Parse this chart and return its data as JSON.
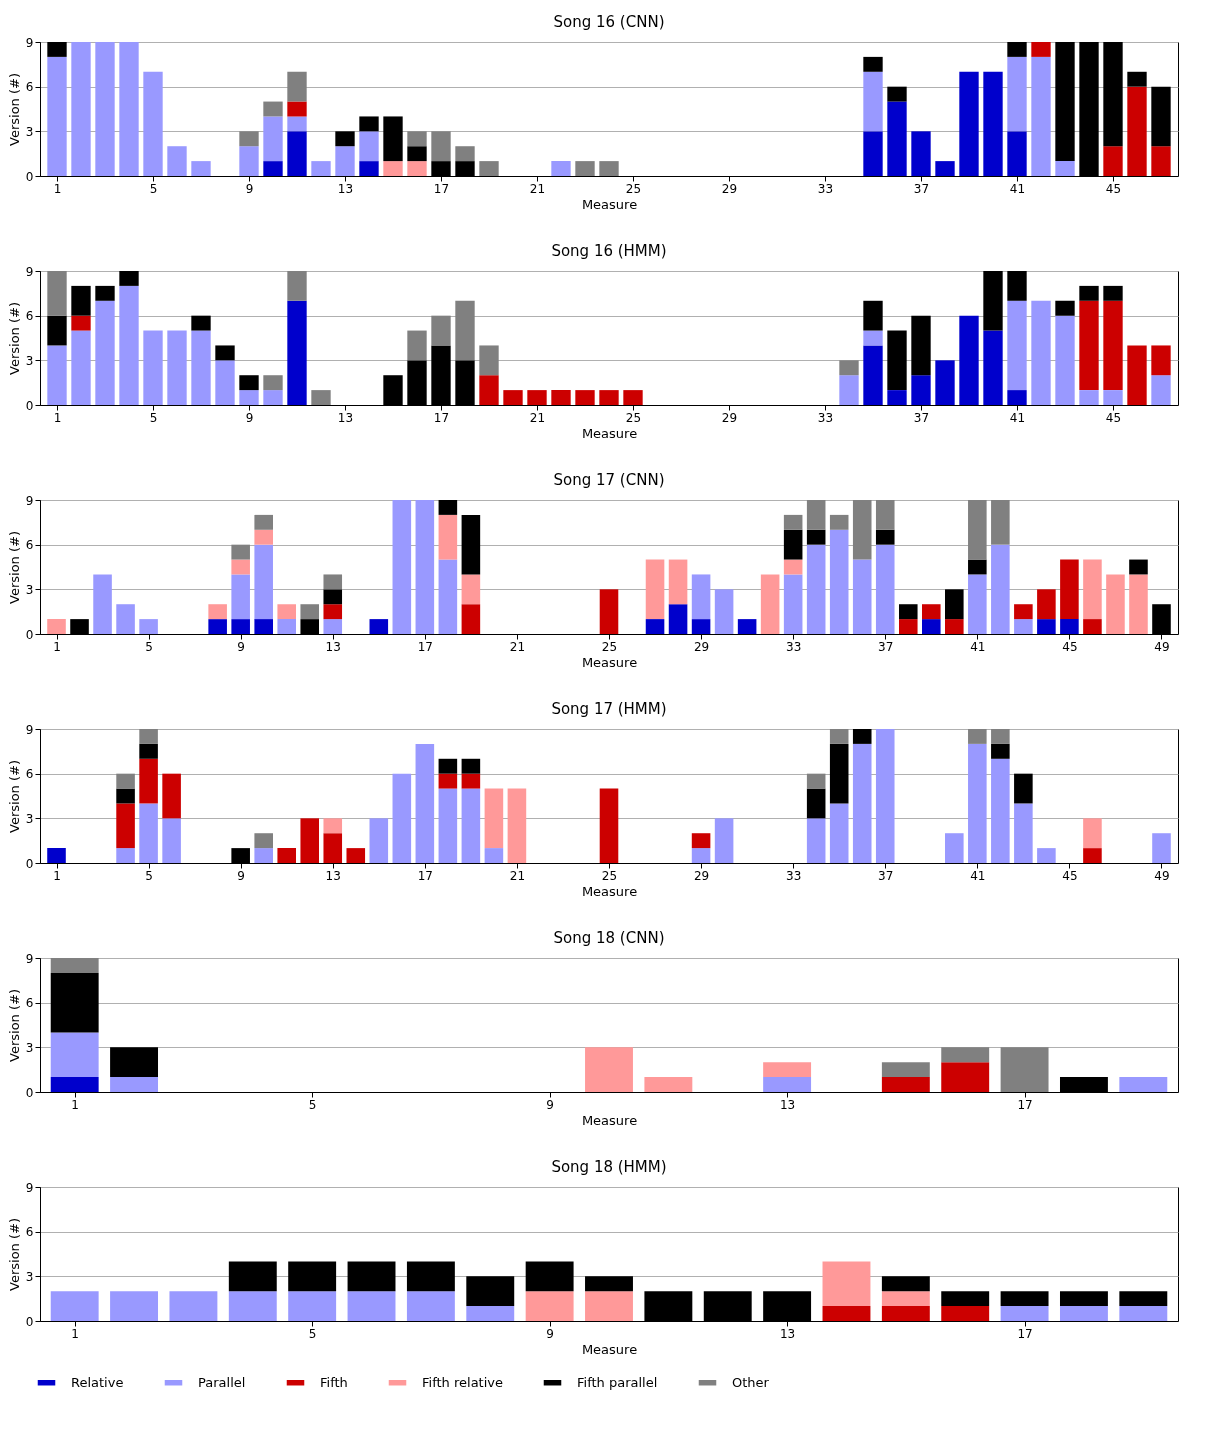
{
  "chart_data": [
    {
      "type": "bar",
      "title": "Song 16 (CNN)",
      "xlabel": "Measure",
      "ylabel": "Version (#)",
      "stacked": true,
      "grid": "y",
      "xlim": [
        0.5,
        47.5
      ],
      "xticks": [
        1,
        5,
        9,
        13,
        17,
        21,
        25,
        29,
        33,
        37,
        41,
        45
      ],
      "ylim": [
        0,
        9
      ],
      "yticks": [
        0,
        3,
        6,
        9
      ],
      "x": [
        1,
        2,
        3,
        4,
        5,
        6,
        7,
        8,
        9,
        10,
        11,
        12,
        13,
        14,
        15,
        16,
        17,
        18,
        19,
        20,
        21,
        22,
        23,
        24,
        25,
        26,
        27,
        28,
        29,
        30,
        31,
        32,
        33,
        34,
        35,
        36,
        37,
        38,
        39,
        40,
        41,
        42,
        43,
        44,
        45,
        46,
        47
      ],
      "series": [
        {
          "color": "#0000cc",
          "values": [
            0,
            0,
            0,
            0,
            0,
            0,
            0,
            0,
            0,
            1,
            3,
            0,
            0,
            1,
            0,
            0,
            0,
            0,
            0,
            0,
            0,
            0,
            0,
            0,
            0,
            0,
            0,
            0,
            0,
            0,
            0,
            0,
            0,
            0,
            3,
            5,
            3,
            1,
            7,
            7,
            3,
            0,
            0,
            0,
            0,
            0,
            0
          ]
        },
        {
          "color": "#9999ff",
          "values": [
            8,
            9,
            9,
            9,
            7,
            2,
            1,
            0,
            2,
            3,
            1,
            1,
            2,
            2,
            0,
            0,
            0,
            0,
            0,
            0,
            0,
            1,
            0,
            0,
            0,
            0,
            0,
            0,
            0,
            0,
            0,
            0,
            0,
            0,
            4,
            0,
            0,
            0,
            0,
            0,
            5,
            8,
            1,
            0,
            0,
            0,
            0
          ]
        },
        {
          "color": "#cc0000",
          "values": [
            0,
            0,
            0,
            0,
            0,
            0,
            0,
            0,
            0,
            0,
            1,
            0,
            0,
            0,
            0,
            0,
            0,
            0,
            0,
            0,
            0,
            0,
            0,
            0,
            0,
            0,
            0,
            0,
            0,
            0,
            0,
            0,
            0,
            0,
            0,
            0,
            0,
            0,
            0,
            0,
            0,
            1,
            0,
            0,
            2,
            6,
            2
          ]
        },
        {
          "color": "#ff9999",
          "values": [
            0,
            0,
            0,
            0,
            0,
            0,
            0,
            0,
            0,
            0,
            0,
            0,
            0,
            0,
            1,
            1,
            0,
            0,
            0,
            0,
            0,
            0,
            0,
            0,
            0,
            0,
            0,
            0,
            0,
            0,
            0,
            0,
            0,
            0,
            0,
            0,
            0,
            0,
            0,
            0,
            0,
            0,
            0,
            0,
            0,
            0,
            0
          ]
        },
        {
          "color": "#000000",
          "values": [
            1,
            0,
            0,
            0,
            0,
            0,
            0,
            0,
            0,
            0,
            0,
            0,
            1,
            1,
            3,
            1,
            1,
            1,
            0,
            0,
            0,
            0,
            0,
            0,
            0,
            0,
            0,
            0,
            0,
            0,
            0,
            0,
            0,
            0,
            1,
            1,
            0,
            0,
            0,
            0,
            1,
            0,
            8,
            9,
            7,
            1,
            4
          ]
        },
        {
          "color": "#808080",
          "values": [
            0,
            0,
            0,
            0,
            0,
            0,
            0,
            0,
            1,
            1,
            2,
            0,
            0,
            0,
            0,
            1,
            2,
            1,
            1,
            0,
            0,
            0,
            1,
            1,
            0,
            0,
            0,
            0,
            0,
            0,
            0,
            0,
            0,
            0,
            0,
            0,
            0,
            0,
            0,
            0,
            0,
            0,
            0,
            0,
            0,
            0,
            0
          ]
        }
      ]
    },
    {
      "type": "bar",
      "title": "Song 16 (HMM)",
      "xlabel": "Measure",
      "ylabel": "Version (#)",
      "stacked": true,
      "grid": "y",
      "xlim": [
        0.5,
        47.5
      ],
      "xticks": [
        1,
        5,
        9,
        13,
        17,
        21,
        25,
        29,
        33,
        37,
        41,
        45
      ],
      "ylim": [
        0,
        9
      ],
      "yticks": [
        0,
        3,
        6,
        9
      ],
      "x": [
        1,
        2,
        3,
        4,
        5,
        6,
        7,
        8,
        9,
        10,
        11,
        12,
        13,
        14,
        15,
        16,
        17,
        18,
        19,
        20,
        21,
        22,
        23,
        24,
        25,
        26,
        27,
        28,
        29,
        30,
        31,
        32,
        33,
        34,
        35,
        36,
        37,
        38,
        39,
        40,
        41,
        42,
        43,
        44,
        45,
        46,
        47
      ],
      "series": [
        {
          "color": "#0000cc",
          "values": [
            0,
            0,
            0,
            0,
            0,
            0,
            0,
            0,
            0,
            0,
            7,
            0,
            0,
            0,
            0,
            0,
            0,
            0,
            0,
            0,
            0,
            0,
            0,
            0,
            0,
            0,
            0,
            0,
            0,
            0,
            0,
            0,
            0,
            0,
            4,
            1,
            2,
            3,
            6,
            5,
            1,
            0,
            0,
            0,
            0,
            0,
            0
          ]
        },
        {
          "color": "#9999ff",
          "values": [
            4,
            5,
            7,
            8,
            5,
            5,
            5,
            3,
            1,
            1,
            0,
            0,
            0,
            0,
            0,
            0,
            0,
            0,
            0,
            0,
            0,
            0,
            0,
            0,
            0,
            0,
            0,
            0,
            0,
            0,
            0,
            0,
            0,
            2,
            1,
            0,
            0,
            0,
            0,
            0,
            6,
            7,
            6,
            1,
            1,
            0,
            2
          ]
        },
        {
          "color": "#cc0000",
          "values": [
            0,
            1,
            0,
            0,
            0,
            0,
            0,
            0,
            0,
            0,
            0,
            0,
            0,
            0,
            0,
            0,
            0,
            0,
            2,
            1,
            1,
            1,
            1,
            1,
            1,
            0,
            0,
            0,
            0,
            0,
            0,
            0,
            0,
            0,
            0,
            0,
            0,
            0,
            0,
            0,
            0,
            0,
            0,
            6,
            6,
            4,
            2
          ]
        },
        {
          "color": "#ff9999",
          "values": [
            0,
            0,
            0,
            0,
            0,
            0,
            0,
            0,
            0,
            0,
            0,
            0,
            0,
            0,
            0,
            0,
            0,
            0,
            0,
            0,
            0,
            0,
            0,
            0,
            0,
            0,
            0,
            0,
            0,
            0,
            0,
            0,
            0,
            0,
            0,
            0,
            0,
            0,
            0,
            0,
            0,
            0,
            0,
            0,
            0,
            0,
            0
          ]
        },
        {
          "color": "#000000",
          "values": [
            2,
            2,
            1,
            1,
            0,
            0,
            1,
            1,
            1,
            0,
            0,
            0,
            0,
            0,
            2,
            3,
            4,
            3,
            0,
            0,
            0,
            0,
            0,
            0,
            0,
            0,
            0,
            0,
            0,
            0,
            0,
            0,
            0,
            0,
            2,
            4,
            4,
            0,
            0,
            4,
            2,
            0,
            1,
            1,
            1,
            0,
            0
          ]
        },
        {
          "color": "#808080",
          "values": [
            3,
            0,
            0,
            0,
            0,
            0,
            0,
            0,
            0,
            1,
            2,
            1,
            0,
            0,
            0,
            2,
            2,
            4,
            2,
            0,
            0,
            0,
            0,
            0,
            0,
            0,
            0,
            0,
            0,
            0,
            0,
            0,
            0,
            1,
            0,
            0,
            0,
            0,
            0,
            0,
            0,
            0,
            0,
            0,
            0,
            0,
            0
          ]
        }
      ]
    },
    {
      "type": "bar",
      "title": "Song 17 (CNN)",
      "xlabel": "Measure",
      "ylabel": "Version (#)",
      "stacked": true,
      "grid": "y",
      "xlim": [
        0.5,
        49.5
      ],
      "xticks": [
        1,
        5,
        9,
        13,
        17,
        21,
        25,
        29,
        33,
        37,
        41,
        45,
        49
      ],
      "ylim": [
        0,
        9
      ],
      "yticks": [
        0,
        3,
        6,
        9
      ],
      "x": [
        1,
        2,
        3,
        4,
        5,
        6,
        7,
        8,
        9,
        10,
        11,
        12,
        13,
        14,
        15,
        16,
        17,
        18,
        19,
        20,
        21,
        22,
        23,
        24,
        25,
        26,
        27,
        28,
        29,
        30,
        31,
        32,
        33,
        34,
        35,
        36,
        37,
        38,
        39,
        40,
        41,
        42,
        43,
        44,
        45,
        46,
        47,
        48,
        49
      ],
      "series": [
        {
          "color": "#0000cc",
          "values": [
            0,
            0,
            0,
            0,
            0,
            0,
            0,
            1,
            1,
            1,
            0,
            0,
            0,
            0,
            1,
            0,
            0,
            0,
            0,
            0,
            0,
            0,
            0,
            0,
            0,
            0,
            1,
            2,
            1,
            0,
            1,
            0,
            0,
            0,
            0,
            0,
            0,
            0,
            1,
            0,
            0,
            0,
            0,
            1,
            1,
            0,
            0,
            0,
            0
          ]
        },
        {
          "color": "#9999ff",
          "values": [
            0,
            0,
            4,
            2,
            1,
            0,
            0,
            0,
            3,
            5,
            1,
            0,
            1,
            0,
            0,
            9,
            9,
            5,
            0,
            0,
            0,
            0,
            0,
            0,
            0,
            0,
            0,
            0,
            3,
            3,
            0,
            0,
            4,
            6,
            7,
            5,
            6,
            0,
            0,
            0,
            4,
            6,
            1,
            0,
            0,
            0,
            0,
            0,
            0
          ]
        },
        {
          "color": "#cc0000",
          "values": [
            0,
            0,
            0,
            0,
            0,
            0,
            0,
            0,
            0,
            0,
            0,
            0,
            1,
            0,
            0,
            0,
            0,
            0,
            2,
            0,
            0,
            0,
            0,
            0,
            3,
            0,
            0,
            0,
            0,
            0,
            0,
            0,
            0,
            0,
            0,
            0,
            0,
            1,
            1,
            1,
            0,
            0,
            1,
            2,
            4,
            1,
            0,
            0,
            0
          ]
        },
        {
          "color": "#ff9999",
          "values": [
            1,
            0,
            0,
            0,
            0,
            0,
            0,
            1,
            1,
            1,
            1,
            0,
            0,
            0,
            0,
            0,
            0,
            3,
            2,
            0,
            0,
            0,
            0,
            0,
            0,
            0,
            4,
            3,
            0,
            0,
            0,
            4,
            1,
            0,
            0,
            0,
            0,
            0,
            0,
            0,
            0,
            0,
            0,
            0,
            0,
            4,
            4,
            4,
            0
          ]
        },
        {
          "color": "#000000",
          "values": [
            0,
            1,
            0,
            0,
            0,
            0,
            0,
            0,
            0,
            0,
            0,
            1,
            1,
            0,
            0,
            0,
            0,
            1,
            4,
            0,
            0,
            0,
            0,
            0,
            0,
            0,
            0,
            0,
            0,
            0,
            0,
            0,
            2,
            1,
            0,
            0,
            1,
            1,
            0,
            2,
            1,
            0,
            0,
            0,
            0,
            0,
            0,
            1,
            2
          ]
        },
        {
          "color": "#808080",
          "values": [
            0,
            0,
            0,
            0,
            0,
            0,
            0,
            0,
            1,
            1,
            0,
            1,
            1,
            0,
            0,
            0,
            0,
            0,
            0,
            0,
            0,
            0,
            0,
            0,
            0,
            0,
            0,
            0,
            0,
            0,
            0,
            0,
            1,
            2,
            1,
            4,
            2,
            0,
            0,
            0,
            4,
            3,
            0,
            0,
            0,
            0,
            0,
            0,
            0
          ]
        }
      ]
    },
    {
      "type": "bar",
      "title": "Song 17 (HMM)",
      "xlabel": "Measure",
      "ylabel": "Version (#)",
      "stacked": true,
      "grid": "y",
      "xlim": [
        0.5,
        49.5
      ],
      "xticks": [
        1,
        5,
        9,
        13,
        17,
        21,
        25,
        29,
        33,
        37,
        41,
        45,
        49
      ],
      "ylim": [
        0,
        9
      ],
      "yticks": [
        0,
        3,
        6,
        9
      ],
      "x": [
        1,
        2,
        3,
        4,
        5,
        6,
        7,
        8,
        9,
        10,
        11,
        12,
        13,
        14,
        15,
        16,
        17,
        18,
        19,
        20,
        21,
        22,
        23,
        24,
        25,
        26,
        27,
        28,
        29,
        30,
        31,
        32,
        33,
        34,
        35,
        36,
        37,
        38,
        39,
        40,
        41,
        42,
        43,
        44,
        45,
        46,
        47,
        48,
        49
      ],
      "series": [
        {
          "color": "#0000cc",
          "values": [
            1,
            0,
            0,
            0,
            0,
            0,
            0,
            0,
            0,
            0,
            0,
            0,
            0,
            0,
            0,
            0,
            0,
            0,
            0,
            0,
            0,
            0,
            0,
            0,
            0,
            0,
            0,
            0,
            0,
            0,
            0,
            0,
            0,
            0,
            0,
            0,
            0,
            0,
            0,
            0,
            0,
            0,
            0,
            0,
            0,
            0,
            0,
            0,
            0
          ]
        },
        {
          "color": "#9999ff",
          "values": [
            0,
            0,
            0,
            1,
            4,
            3,
            0,
            0,
            0,
            1,
            0,
            0,
            0,
            0,
            3,
            6,
            8,
            5,
            5,
            1,
            0,
            0,
            0,
            0,
            0,
            0,
            0,
            0,
            1,
            3,
            0,
            0,
            0,
            3,
            4,
            8,
            9,
            0,
            0,
            2,
            8,
            7,
            4,
            1,
            0,
            0,
            0,
            0,
            2
          ]
        },
        {
          "color": "#cc0000",
          "values": [
            0,
            0,
            0,
            3,
            3,
            3,
            0,
            0,
            0,
            0,
            1,
            3,
            2,
            1,
            0,
            0,
            0,
            1,
            1,
            0,
            0,
            0,
            0,
            0,
            5,
            0,
            0,
            0,
            1,
            0,
            0,
            0,
            0,
            0,
            0,
            0,
            0,
            0,
            0,
            0,
            0,
            0,
            0,
            0,
            0,
            1,
            0,
            0,
            0
          ]
        },
        {
          "color": "#ff9999",
          "values": [
            0,
            0,
            0,
            0,
            0,
            0,
            0,
            0,
            0,
            0,
            0,
            0,
            1,
            0,
            0,
            0,
            0,
            0,
            0,
            4,
            5,
            0,
            0,
            0,
            0,
            0,
            0,
            0,
            0,
            0,
            0,
            0,
            0,
            0,
            0,
            0,
            0,
            0,
            0,
            0,
            0,
            0,
            0,
            0,
            0,
            2,
            0,
            0,
            0
          ]
        },
        {
          "color": "#000000",
          "values": [
            0,
            0,
            0,
            1,
            1,
            0,
            0,
            0,
            1,
            0,
            0,
            0,
            0,
            0,
            0,
            0,
            0,
            1,
            1,
            0,
            0,
            0,
            0,
            0,
            0,
            0,
            0,
            0,
            0,
            0,
            0,
            0,
            0,
            2,
            4,
            1,
            0,
            0,
            0,
            0,
            0,
            1,
            2,
            0,
            0,
            0,
            0,
            0,
            0
          ]
        },
        {
          "color": "#808080",
          "values": [
            0,
            0,
            0,
            1,
            1,
            0,
            0,
            0,
            0,
            1,
            0,
            0,
            0,
            0,
            0,
            0,
            0,
            0,
            0,
            0,
            0,
            0,
            0,
            0,
            0,
            0,
            0,
            0,
            0,
            0,
            0,
            0,
            0,
            1,
            1,
            0,
            0,
            0,
            0,
            0,
            1,
            1,
            0,
            0,
            0,
            0,
            0,
            0,
            0
          ]
        }
      ]
    },
    {
      "type": "bar",
      "title": "Song 18 (CNN)",
      "xlabel": "Measure",
      "ylabel": "Version (#)",
      "stacked": true,
      "grid": "y",
      "xlim": [
        0.5,
        19.5
      ],
      "xticks": [
        1,
        5,
        9,
        13,
        17
      ],
      "ylim": [
        0,
        9
      ],
      "yticks": [
        0,
        3,
        6,
        9
      ],
      "x": [
        1,
        2,
        3,
        4,
        5,
        6,
        7,
        8,
        9,
        10,
        11,
        12,
        13,
        14,
        15,
        16,
        17,
        18,
        19
      ],
      "series": [
        {
          "color": "#0000cc",
          "values": [
            1,
            0,
            0,
            0,
            0,
            0,
            0,
            0,
            0,
            0,
            0,
            0,
            0,
            0,
            0,
            0,
            0,
            0,
            0
          ]
        },
        {
          "color": "#9999ff",
          "values": [
            3,
            1,
            0,
            0,
            0,
            0,
            0,
            0,
            0,
            0,
            0,
            0,
            1,
            0,
            0,
            0,
            0,
            0,
            1
          ]
        },
        {
          "color": "#cc0000",
          "values": [
            0,
            0,
            0,
            0,
            0,
            0,
            0,
            0,
            0,
            0,
            0,
            0,
            0,
            0,
            1,
            2,
            0,
            0,
            0
          ]
        },
        {
          "color": "#ff9999",
          "values": [
            0,
            0,
            0,
            0,
            0,
            0,
            0,
            0,
            0,
            3,
            1,
            0,
            1,
            0,
            0,
            0,
            0,
            0,
            0
          ]
        },
        {
          "color": "#000000",
          "values": [
            4,
            2,
            0,
            0,
            0,
            0,
            0,
            0,
            0,
            0,
            0,
            0,
            0,
            0,
            0,
            0,
            0,
            1,
            0
          ]
        },
        {
          "color": "#808080",
          "values": [
            1,
            0,
            0,
            0,
            0,
            0,
            0,
            0,
            0,
            0,
            0,
            0,
            0,
            0,
            1,
            1,
            3,
            0,
            0
          ]
        }
      ]
    },
    {
      "type": "bar",
      "title": "Song 18 (HMM)",
      "xlabel": "Measure",
      "ylabel": "Version (#)",
      "stacked": true,
      "grid": "y",
      "legend": "bottom",
      "xlim": [
        0.5,
        19.5
      ],
      "xticks": [
        1,
        5,
        9,
        13,
        17
      ],
      "ylim": [
        0,
        9
      ],
      "yticks": [
        0,
        3,
        6,
        9
      ],
      "x": [
        1,
        2,
        3,
        4,
        5,
        6,
        7,
        8,
        9,
        10,
        11,
        12,
        13,
        14,
        15,
        16,
        17,
        18,
        19
      ],
      "series": [
        {
          "name": "Relative",
          "color": "#0000cc",
          "values": [
            0,
            0,
            0,
            0,
            0,
            0,
            0,
            0,
            0,
            0,
            0,
            0,
            0,
            0,
            0,
            0,
            0,
            0,
            0
          ]
        },
        {
          "name": "Parallel",
          "color": "#9999ff",
          "values": [
            2,
            2,
            2,
            2,
            2,
            2,
            2,
            1,
            0,
            0,
            0,
            0,
            0,
            0,
            0,
            0,
            1,
            1,
            1
          ]
        },
        {
          "name": "Fifth",
          "color": "#cc0000",
          "values": [
            0,
            0,
            0,
            0,
            0,
            0,
            0,
            0,
            0,
            0,
            0,
            0,
            0,
            1,
            1,
            1,
            0,
            0,
            0
          ]
        },
        {
          "name": "Fifth relative",
          "color": "#ff9999",
          "values": [
            0,
            0,
            0,
            0,
            0,
            0,
            0,
            0,
            2,
            2,
            0,
            0,
            0,
            3,
            1,
            0,
            0,
            0,
            0
          ]
        },
        {
          "name": "Fifth parallel",
          "color": "#000000",
          "values": [
            0,
            0,
            0,
            2,
            2,
            2,
            2,
            2,
            2,
            1,
            2,
            2,
            2,
            0,
            1,
            1,
            1,
            1,
            1
          ]
        },
        {
          "name": "Other",
          "color": "#808080",
          "values": [
            0,
            0,
            0,
            0,
            0,
            0,
            0,
            0,
            0,
            0,
            0,
            0,
            0,
            0,
            0,
            0,
            0,
            0,
            0
          ]
        }
      ]
    }
  ]
}
